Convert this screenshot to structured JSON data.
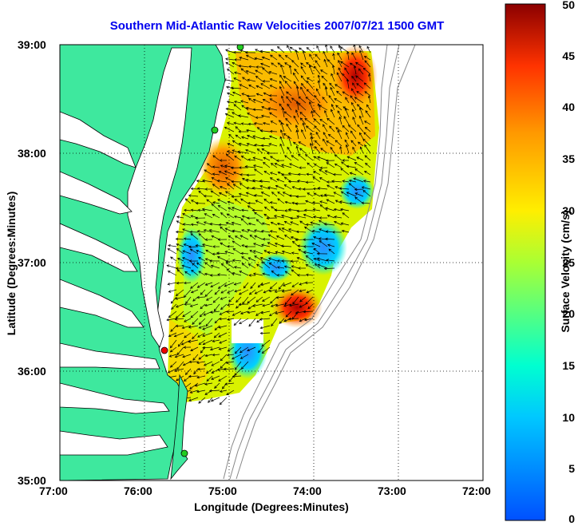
{
  "title": "Southern Mid-Atlantic Raw Velocities 2007/07/21 1500 GMT",
  "axes": {
    "xlabel": "Longitude (Degrees:Minutes)",
    "ylabel": "Latitude (Degrees:Minutes)",
    "xticks": [
      "77:00",
      "76:00",
      "75:00",
      "74:00",
      "73:00",
      "72:00"
    ],
    "yticks": [
      "39:00",
      "38:00",
      "37:00",
      "36:00",
      "35:00"
    ]
  },
  "colorbar": {
    "label": "Surface Velocity (cm/s)",
    "ticks": [
      "50",
      "45",
      "40",
      "35",
      "30",
      "25",
      "20",
      "15",
      "10",
      "5",
      "0"
    ],
    "min": 0,
    "max": 50
  },
  "colors": {
    "land": "#3ee89e",
    "water": "#ffffff",
    "title": "#0000ee",
    "station_green": "#22cc22",
    "station_red": "#ee0000"
  },
  "chart_data": {
    "type": "heatmap",
    "title": "Southern Mid-Atlantic Raw Velocities 2007/07/21 1500 GMT",
    "xlabel": "Longitude (Degrees:Minutes)",
    "ylabel": "Latitude (Degrees:Minutes)",
    "xlim_deg_west": [
      77,
      72
    ],
    "ylim_deg_north": [
      35,
      39
    ],
    "grid": true,
    "colorbar_range_cm_s": [
      0,
      50
    ],
    "speed_hotspots_cm_s": [
      {
        "lon_w": 74.4,
        "lat_n": 36.5,
        "speed": 45
      },
      {
        "lon_w": 73.6,
        "lat_n": 38.7,
        "speed": 45
      },
      {
        "lon_w": 75.1,
        "lat_n": 37.8,
        "speed": 38
      },
      {
        "lon_w": 74.5,
        "lat_n": 38.5,
        "speed": 36
      },
      {
        "lon_w": 73.7,
        "lat_n": 37.7,
        "speed": 12
      },
      {
        "lon_w": 74.0,
        "lat_n": 37.0,
        "speed": 12
      },
      {
        "lon_w": 74.9,
        "lat_n": 36.5,
        "speed": 10
      },
      {
        "lon_w": 74.6,
        "lat_n": 36.0,
        "speed": 9
      },
      {
        "lon_w": 75.3,
        "lat_n": 36.6,
        "speed": 25
      }
    ],
    "stations": [
      {
        "lon_w": 74.85,
        "lat_n": 38.98,
        "type": "green"
      },
      {
        "lon_w": 75.15,
        "lat_n": 38.22,
        "type": "green"
      },
      {
        "lon_w": 75.45,
        "lat_n": 35.25,
        "type": "green"
      },
      {
        "lon_w": 75.75,
        "lat_n": 36.17,
        "type": "red"
      }
    ]
  }
}
